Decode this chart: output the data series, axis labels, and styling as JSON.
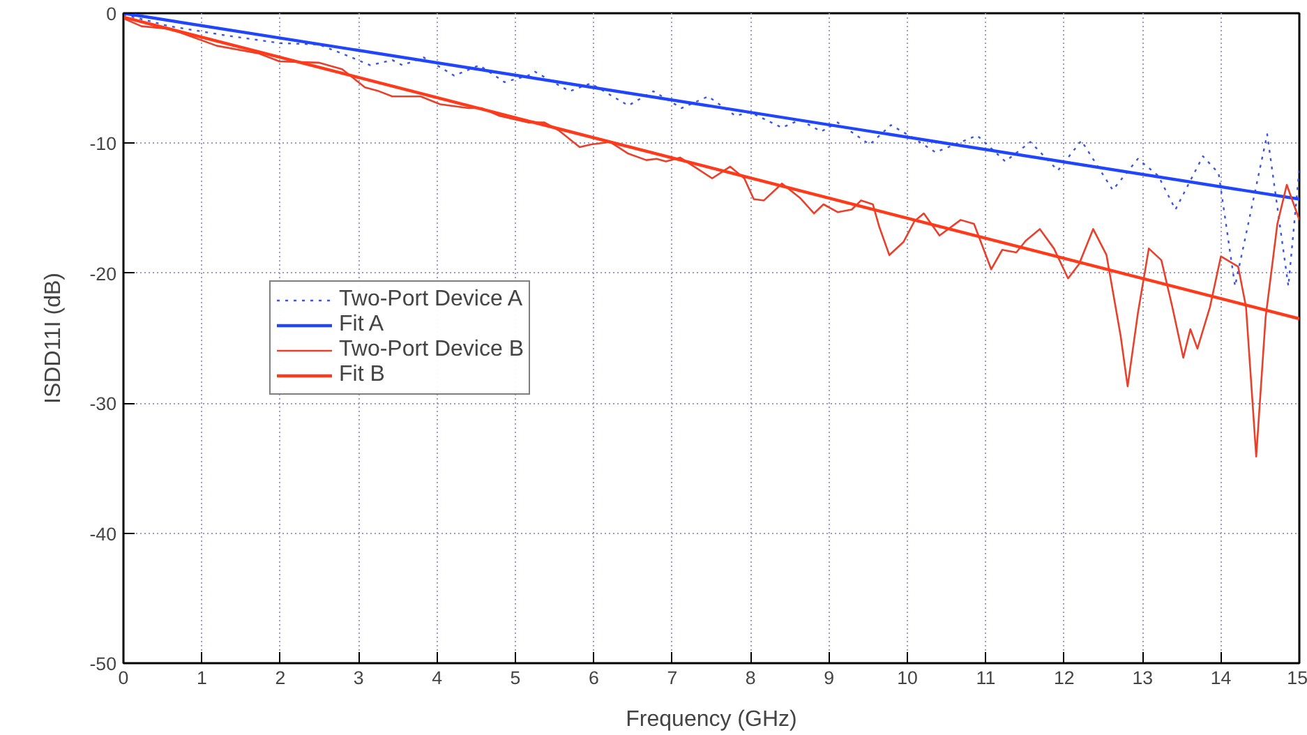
{
  "chart_data": {
    "type": "line",
    "xlabel": "Frequency (GHz)",
    "ylabel": "ISDD11I (dB)",
    "xlim": [
      0,
      15
    ],
    "ylim": [
      -50,
      0
    ],
    "xticks": [
      0,
      1,
      2,
      3,
      4,
      5,
      6,
      7,
      8,
      9,
      10,
      11,
      12,
      13,
      14,
      15
    ],
    "yticks": [
      -50,
      -40,
      -30,
      -20,
      -10,
      0
    ],
    "grid": true,
    "legend": "center left",
    "series": [
      {
        "name": "Two-Port Device A",
        "color": "#3a55e6",
        "line_style": "dotted",
        "x": [
          0,
          0.59,
          1.3,
          2.0,
          2.49,
          2.79,
          3.15,
          3.43,
          3.56,
          3.83,
          4.22,
          4.54,
          4.86,
          5.16,
          5.25,
          5.69,
          5.96,
          6.44,
          6.76,
          7.12,
          7.46,
          7.81,
          7.99,
          8.4,
          8.63,
          8.9,
          9.11,
          9.52,
          9.79,
          10.05,
          10.36,
          10.89,
          11.25,
          11.57,
          11.92,
          12.22,
          12.62,
          12.94,
          13.2,
          13.42,
          13.77,
          13.97,
          14.18,
          14.59,
          14.86,
          15.0
        ],
        "values": [
          -0.1,
          -1.0,
          -1.7,
          -2.3,
          -2.4,
          -3.1,
          -4.0,
          -3.6,
          -4.0,
          -3.4,
          -4.8,
          -4.0,
          -5.3,
          -4.8,
          -4.5,
          -6.0,
          -5.4,
          -7.1,
          -6.0,
          -7.3,
          -6.4,
          -7.9,
          -7.6,
          -8.8,
          -8.2,
          -9.1,
          -8.4,
          -10.1,
          -8.6,
          -9.5,
          -10.7,
          -9.4,
          -11.4,
          -9.9,
          -12.1,
          -9.8,
          -13.6,
          -11.2,
          -12.5,
          -15.1,
          -11.0,
          -12.3,
          -21.0,
          -9.3,
          -21.0,
          -12.0
        ]
      },
      {
        "name": "Fit A",
        "color": "#1f45ff",
        "line_style": "solid",
        "x": [
          0,
          15
        ],
        "values": [
          0,
          -14.3
        ]
      },
      {
        "name": "Two-Port Device B",
        "color": "#e8402a",
        "line_style": "solid",
        "x": [
          0,
          0.23,
          0.59,
          1.19,
          1.73,
          1.99,
          2.49,
          2.79,
          3.08,
          3.26,
          3.43,
          3.79,
          4.04,
          4.4,
          4.57,
          4.8,
          5.16,
          5.37,
          5.55,
          5.82,
          5.96,
          6.21,
          6.44,
          6.67,
          6.8,
          6.92,
          7.1,
          7.28,
          7.51,
          7.74,
          7.92,
          8.04,
          8.17,
          8.4,
          8.63,
          8.81,
          8.93,
          9.11,
          9.29,
          9.41,
          9.56,
          9.64,
          9.77,
          9.95,
          10.09,
          10.21,
          10.41,
          10.68,
          10.85,
          11.07,
          11.21,
          11.39,
          11.51,
          11.69,
          11.87,
          12.05,
          12.19,
          12.37,
          12.54,
          12.72,
          12.81,
          12.94,
          13.08,
          13.24,
          13.38,
          13.52,
          13.61,
          13.7,
          13.86,
          14.0,
          14.22,
          14.32,
          14.45,
          14.57,
          14.72,
          14.84,
          15.0
        ],
        "values": [
          -0.4,
          -1.0,
          -1.2,
          -2.5,
          -3.1,
          -3.7,
          -3.8,
          -4.3,
          -5.7,
          -6.0,
          -6.4,
          -6.4,
          -7.0,
          -7.3,
          -7.3,
          -7.9,
          -8.4,
          -8.4,
          -9.0,
          -10.3,
          -10.1,
          -9.9,
          -10.8,
          -11.3,
          -11.2,
          -11.4,
          -11.1,
          -11.8,
          -12.7,
          -11.8,
          -12.7,
          -14.3,
          -14.4,
          -13.1,
          -14.2,
          -15.4,
          -14.7,
          -15.3,
          -15.1,
          -14.4,
          -14.7,
          -16.4,
          -18.6,
          -17.6,
          -16.0,
          -15.4,
          -17.1,
          -15.9,
          -16.2,
          -19.7,
          -18.2,
          -18.4,
          -17.5,
          -16.6,
          -18.1,
          -20.4,
          -19.3,
          -16.6,
          -18.6,
          -24.8,
          -28.7,
          -23.1,
          -18.1,
          -19.0,
          -22.6,
          -26.5,
          -24.3,
          -25.8,
          -22.6,
          -18.7,
          -19.5,
          -22.6,
          -34.1,
          -23.4,
          -16.2,
          -13.2,
          -15.9
        ]
      },
      {
        "name": "Fit B",
        "color": "#ff3a1a",
        "line_style": "solid",
        "x": [
          0,
          15
        ],
        "values": [
          -0.3,
          -23.5
        ]
      }
    ]
  }
}
